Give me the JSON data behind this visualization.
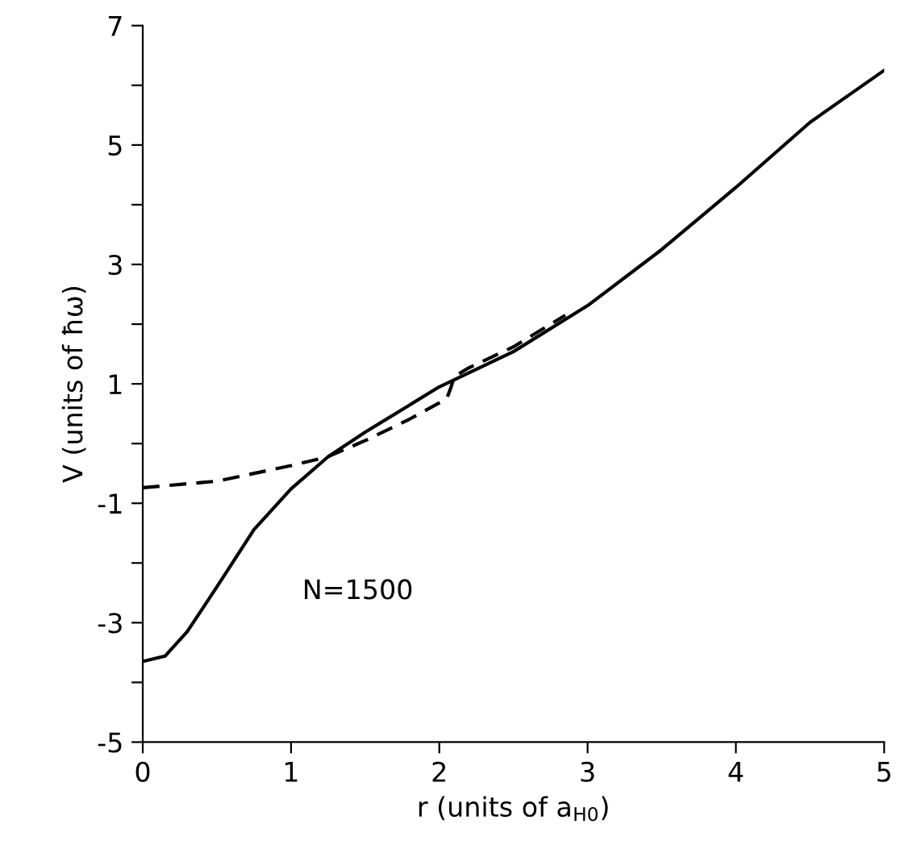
{
  "chart_data": {
    "type": "line",
    "xlabel": "r (units of a$_{H0}$)",
    "ylabel": "V (units of ħω)",
    "xlim": [
      0,
      5
    ],
    "ylim": [
      -5,
      7
    ],
    "xticks": [
      0,
      1,
      2,
      3,
      4,
      5
    ],
    "yticks": [
      -5,
      {
        "value": -4,
        "label": null
      },
      -3,
      {
        "value": -2,
        "label": null
      },
      -1,
      {
        "value": 0,
        "label": null
      },
      1,
      {
        "value": 2,
        "label": null
      },
      3,
      {
        "value": 4,
        "label": null
      },
      5,
      {
        "value": 6,
        "label": null
      },
      7
    ],
    "grid": false,
    "legend": false,
    "series": [
      {
        "color": "#000000",
        "line_style": "solid",
        "x": [
          0,
          0.15,
          0.3,
          0.5,
          0.75,
          1,
          1.25,
          1.5,
          2,
          2.5,
          3,
          3.5,
          4,
          4.5,
          5
        ],
        "values": [
          -3.65,
          -3.56,
          -3.15,
          -2.4,
          -1.44,
          -0.76,
          -0.22,
          0.19,
          0.95,
          1.54,
          2.31,
          3.25,
          4.29,
          5.38,
          6.25
        ]
      },
      {
        "color": "#000000",
        "line_style": "dashed",
        "x": [
          0,
          0.5,
          1,
          1.25,
          1.5,
          1.8,
          2.05,
          2.08,
          2.1,
          2.2,
          2.5,
          2.85
        ],
        "values": [
          -0.74,
          -0.63,
          -0.37,
          -0.22,
          0.05,
          0.41,
          0.75,
          0.95,
          1.12,
          1.27,
          1.62,
          2.15
        ]
      }
    ],
    "annotations": [
      "N=1500"
    ]
  }
}
